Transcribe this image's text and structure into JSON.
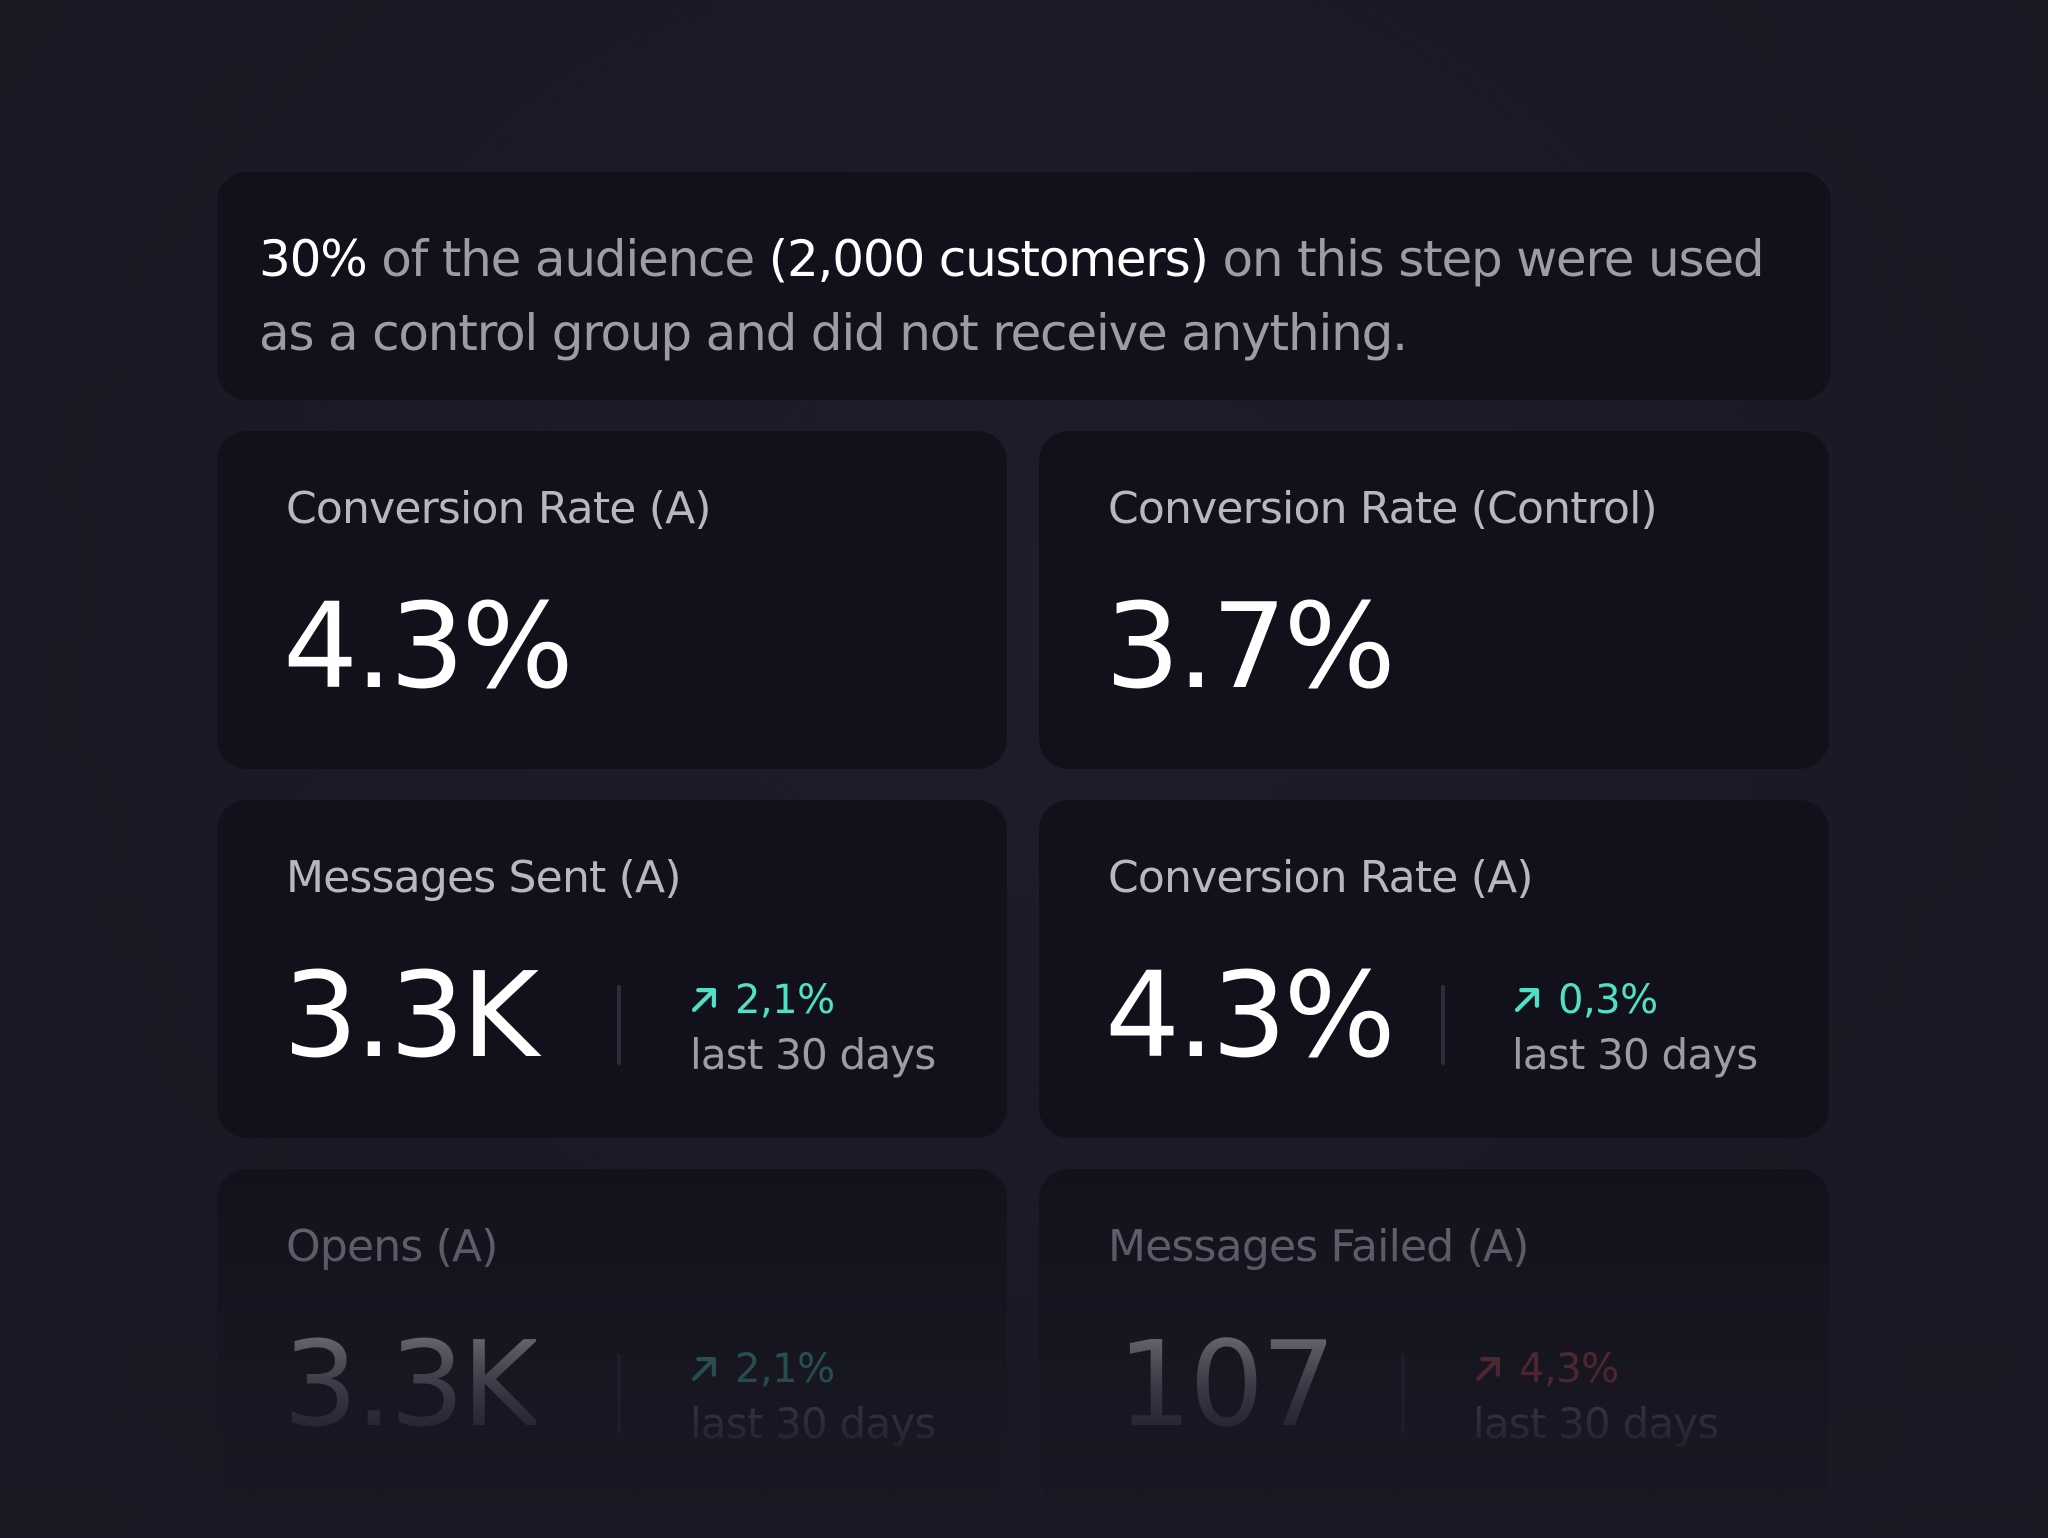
{
  "banner": {
    "percent": "30%",
    "text1": " of the audience ",
    "customers": "(2,000 customers)",
    "text2": " on this step were used as a control group and did not receive anything."
  },
  "cards": [
    {
      "title": "Conversion Rate (A)",
      "value": "4.3%"
    },
    {
      "title": "Conversion Rate (Control)",
      "value": "3.7%"
    },
    {
      "title": "Messages Sent (A)",
      "value": "3.3K",
      "trend": "2,1%",
      "trend_direction": "up",
      "trend_color": "#4fe0c6",
      "period": "last 30 days"
    },
    {
      "title": "Conversion Rate (A)",
      "value": "4.3%",
      "trend": "0,3%",
      "trend_direction": "up",
      "trend_color": "#4fe0c6",
      "period": "last 30 days"
    },
    {
      "title": "Opens (A)",
      "value": "3.3K",
      "trend": "2,1%",
      "trend_direction": "up",
      "trend_color": "#4fe0c6",
      "period": "last 30 days"
    },
    {
      "title": "Messages Failed (A)",
      "value": "107",
      "trend": "4,3%",
      "trend_direction": "up",
      "trend_color": "#d9504e",
      "period": "last 30 days"
    }
  ],
  "icons": {
    "trend_arrow": "arrow-up-right-icon"
  }
}
